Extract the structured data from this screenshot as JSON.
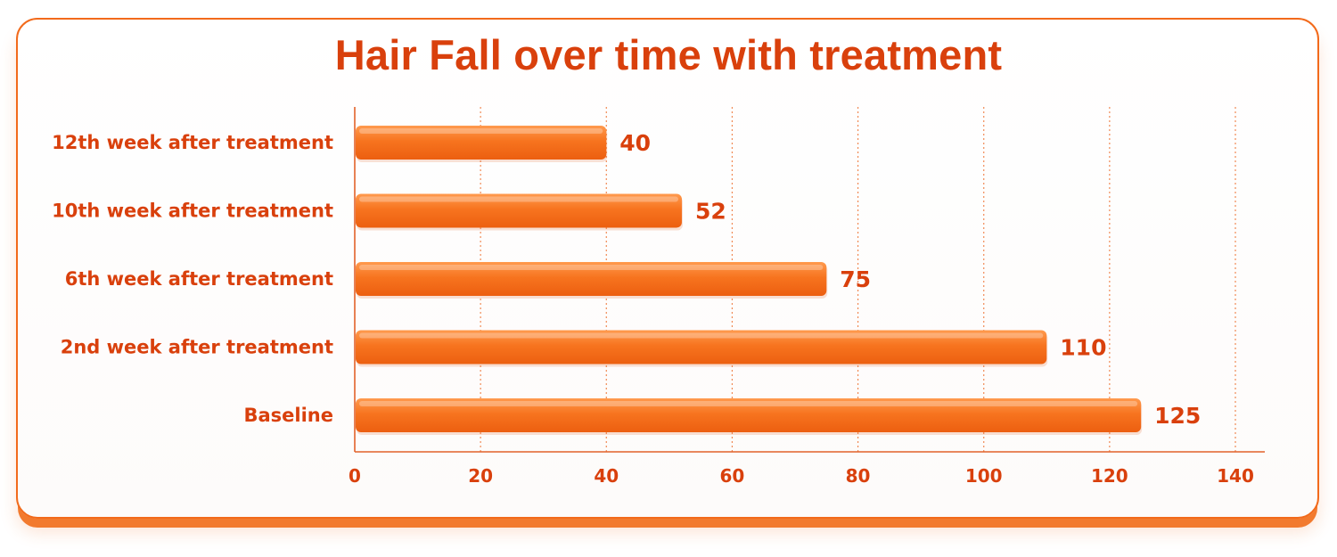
{
  "chart_data": {
    "type": "bar",
    "orientation": "horizontal",
    "title": "Hair Fall over time with treatment",
    "xlabel": "",
    "ylabel": "",
    "categories": [
      "12th week after treatment",
      "10th week after treatment",
      "6th week after treatment",
      "2nd week after treatment",
      "Baseline"
    ],
    "values": [
      40,
      52,
      75,
      110,
      125
    ],
    "xlim": [
      0,
      140
    ],
    "ticks": [
      0,
      20,
      40,
      60,
      80,
      100,
      120,
      140
    ],
    "grid": "vertical-dotted",
    "bar_color": "#f7741f",
    "text_color": "#d9400c"
  }
}
